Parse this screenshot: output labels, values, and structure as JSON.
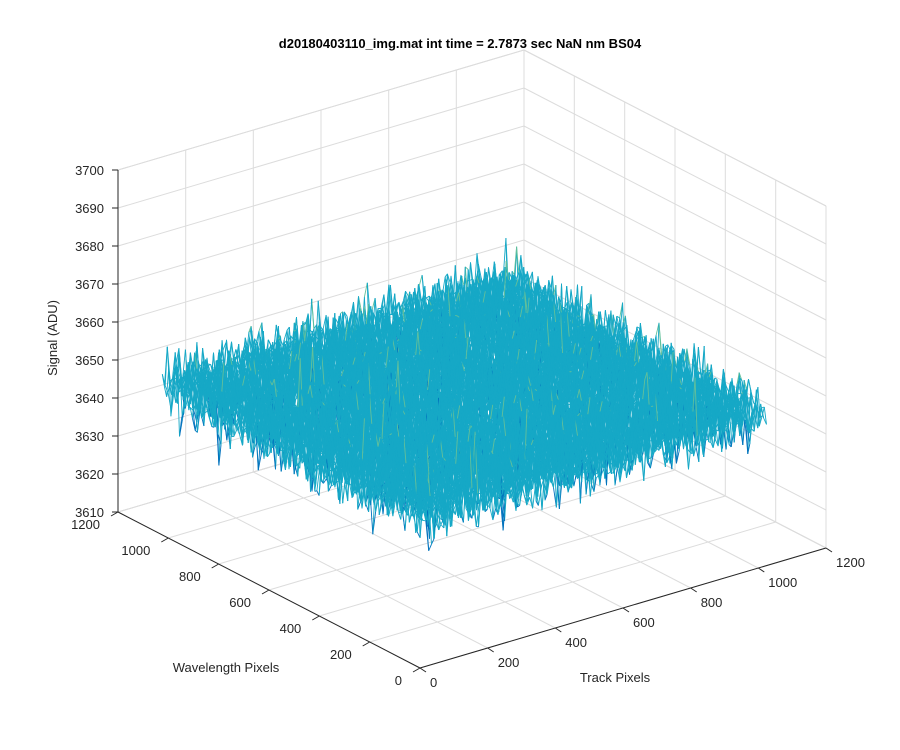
{
  "chart_data": {
    "type": "surface",
    "title": "d20180403110_img.mat int time = 2.7873 sec  NaN nm BS04",
    "xlabel": "Track Pixels",
    "ylabel": "Wavelength Pixels",
    "zlabel": "Signal (ADU)",
    "xlim": [
      0,
      1200
    ],
    "ylim": [
      0,
      1200
    ],
    "zlim": [
      3610,
      3700
    ],
    "x_ticks": [
      0,
      200,
      400,
      600,
      800,
      1000,
      1200
    ],
    "y_ticks": [
      0,
      200,
      400,
      600,
      800,
      1000,
      1200
    ],
    "z_ticks": [
      3610,
      3620,
      3630,
      3640,
      3650,
      3660,
      3670,
      3680,
      3690,
      3700
    ],
    "data_extent": {
      "x": [
        0,
        1024
      ],
      "y": [
        0,
        1024
      ]
    },
    "signal": {
      "mean": 3650,
      "min": 3617,
      "max": 3693
    },
    "grid": true,
    "colors": {
      "low": "#0072bd",
      "mid": "#16a8c6",
      "mid2": "#63c09a",
      "high": "#edb120"
    }
  }
}
